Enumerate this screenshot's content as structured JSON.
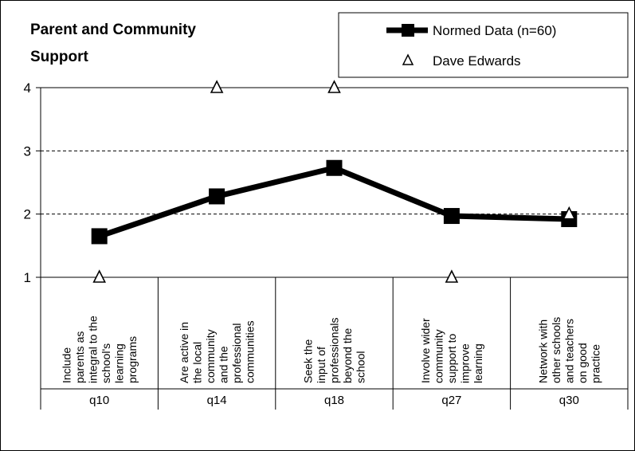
{
  "chart_data": {
    "type": "line",
    "title": "Parent and Community Support",
    "title_lines": [
      "Parent and Community",
      "Support"
    ],
    "ylim": [
      1,
      4
    ],
    "yticks": [
      "1",
      "2",
      "3",
      "4"
    ],
    "grid": "dashed horizontal at 2, 3, 4",
    "legend_position": "top-right",
    "categories": [
      {
        "code": "q10",
        "lines": [
          "Include",
          "parents as",
          "integral to the",
          "school's",
          "learning",
          "programs"
        ]
      },
      {
        "code": "q14",
        "lines": [
          "Are active in",
          "the local",
          "community",
          "and the",
          "professional",
          "communities"
        ]
      },
      {
        "code": "q18",
        "lines": [
          "Seek the",
          "input of",
          "professionals",
          "beyond the",
          "school"
        ]
      },
      {
        "code": "q27",
        "lines": [
          "Involve wider",
          "community",
          "support to",
          "improve",
          "learning"
        ]
      },
      {
        "code": "q30",
        "lines": [
          "Network with",
          "other schools",
          "and teachers",
          "on good",
          "practice"
        ]
      }
    ],
    "series": [
      {
        "name": "Normed Data (n=60)",
        "marker": "square",
        "line": true,
        "color": "#000000",
        "values": [
          1.65,
          2.28,
          2.73,
          1.97,
          1.92
        ]
      },
      {
        "name": "Dave Edwards",
        "marker": "triangle",
        "line": false,
        "color": "#000000",
        "values": [
          1,
          4,
          4,
          1,
          2
        ]
      }
    ]
  }
}
